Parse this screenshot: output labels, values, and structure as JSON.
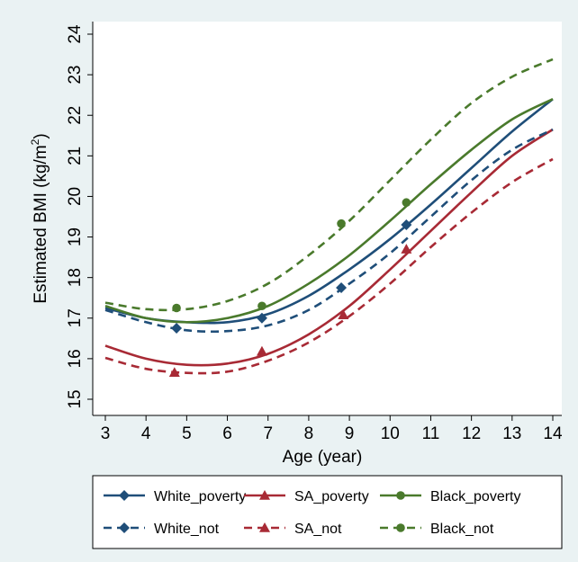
{
  "chart_data": {
    "type": "line",
    "xlabel": "Age (year)",
    "ylabel": "Estimated BMI (kg/m²)",
    "ylabel_base": "Estimated BMI (kg/m",
    "ylabel_sup": "2",
    "ylabel_end": ")",
    "xlim": [
      3,
      14
    ],
    "ylim": [
      15,
      24
    ],
    "xticks": [
      3,
      4,
      5,
      6,
      7,
      8,
      9,
      10,
      11,
      12,
      13,
      14
    ],
    "yticks": [
      15,
      16,
      17,
      18,
      19,
      20,
      21,
      22,
      23,
      24
    ],
    "grid": false,
    "legend_position": "bottom",
    "series": [
      {
        "name": "White_poverty",
        "color": "#1f4e79",
        "dash": "solid",
        "marker": "diamond",
        "x": [
          3,
          4,
          5,
          6,
          7,
          8,
          9,
          10,
          11,
          12,
          13,
          14
        ],
        "y": [
          17.25,
          17.0,
          16.9,
          16.9,
          17.1,
          17.55,
          18.2,
          18.95,
          19.8,
          20.7,
          21.6,
          22.4
        ],
        "marker_x": [],
        "marker_y": []
      },
      {
        "name": "SA_poverty",
        "color": "#a82a35",
        "dash": "solid",
        "marker": "triangle",
        "x": [
          3,
          4,
          5,
          6,
          7,
          8,
          9,
          10,
          11,
          12,
          13,
          14
        ],
        "y": [
          16.32,
          16.0,
          15.85,
          15.88,
          16.12,
          16.6,
          17.3,
          18.2,
          19.15,
          20.1,
          21.0,
          21.65
        ],
        "marker_x": [],
        "marker_y": []
      },
      {
        "name": "Black_poverty",
        "color": "#4a7a2c",
        "dash": "solid",
        "marker": "circle",
        "x": [
          3,
          4,
          5,
          6,
          7,
          8,
          9,
          10,
          11,
          12,
          13,
          14
        ],
        "y": [
          17.3,
          17.0,
          16.9,
          17.0,
          17.3,
          17.85,
          18.55,
          19.4,
          20.3,
          21.15,
          21.9,
          22.4
        ],
        "marker_x": [],
        "marker_y": []
      },
      {
        "name": "White_not",
        "color": "#1f4e79",
        "dash": "dashed",
        "marker": "diamond",
        "x": [
          3,
          4,
          5,
          6,
          7,
          8,
          9,
          10,
          11,
          12,
          13,
          14
        ],
        "y": [
          17.2,
          16.9,
          16.7,
          16.68,
          16.82,
          17.2,
          17.85,
          18.6,
          19.5,
          20.4,
          21.15,
          21.65
        ],
        "marker_x": [
          4.75,
          6.85,
          8.8,
          10.4
        ],
        "marker_y": [
          16.75,
          17.0,
          17.75,
          19.3
        ]
      },
      {
        "name": "SA_not",
        "color": "#a82a35",
        "dash": "dashed",
        "marker": "triangle",
        "x": [
          3,
          4,
          5,
          6,
          7,
          8,
          9,
          10,
          11,
          12,
          13,
          14
        ],
        "y": [
          16.02,
          15.75,
          15.65,
          15.68,
          15.95,
          16.4,
          17.05,
          17.85,
          18.75,
          19.6,
          20.35,
          20.92
        ],
        "marker_x": [
          4.7,
          6.85,
          8.85,
          10.4
        ],
        "marker_y": [
          15.66,
          16.18,
          17.08,
          18.7
        ]
      },
      {
        "name": "Black_not",
        "color": "#4a7a2c",
        "dash": "dashed",
        "marker": "circle",
        "x": [
          3,
          4,
          5,
          6,
          7,
          8,
          9,
          10,
          11,
          12,
          13,
          14
        ],
        "y": [
          17.38,
          17.22,
          17.22,
          17.42,
          17.85,
          18.55,
          19.4,
          20.4,
          21.4,
          22.3,
          22.95,
          23.38
        ],
        "marker_x": [
          4.75,
          6.85,
          8.8,
          10.4
        ],
        "marker_y": [
          17.25,
          17.3,
          19.33,
          19.85
        ]
      }
    ]
  }
}
